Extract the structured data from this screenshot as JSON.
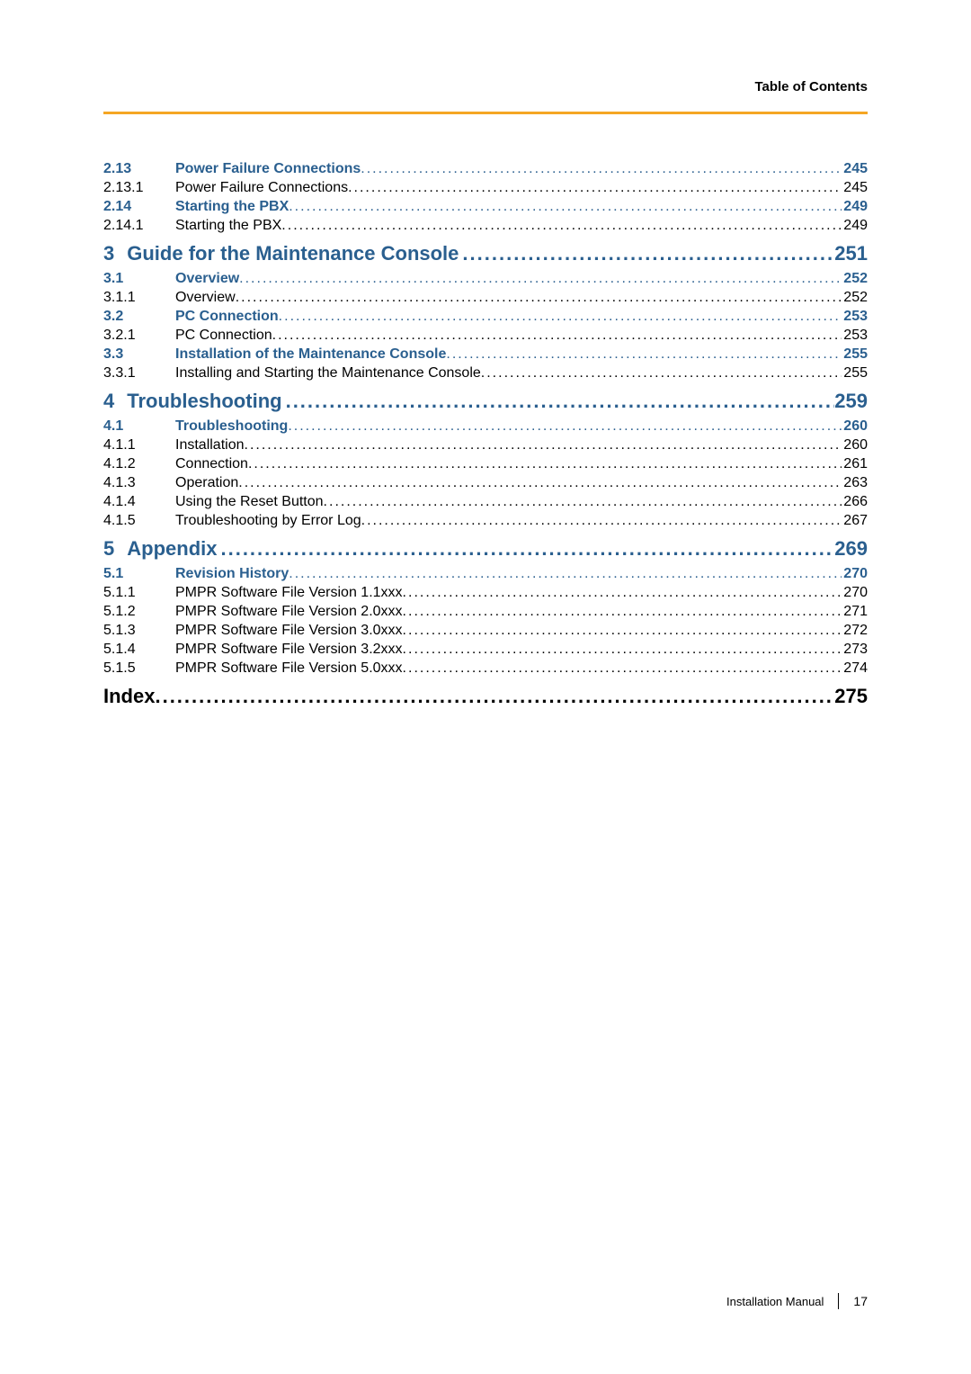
{
  "header": {
    "title": "Table of Contents"
  },
  "toc": [
    {
      "kind": "entry",
      "bold": true,
      "color": true,
      "num": "2.13",
      "title": "Power Failure Connections ",
      "page": "245"
    },
    {
      "kind": "entry",
      "bold": false,
      "color": false,
      "num": "2.13.1",
      "title": "Power Failure Connections ",
      "page": "245"
    },
    {
      "kind": "entry",
      "bold": true,
      "color": true,
      "num": "2.14",
      "title": "Starting the PBX ",
      "page": "249"
    },
    {
      "kind": "entry",
      "bold": false,
      "color": false,
      "num": "2.14.1",
      "title": "Starting the PBX ",
      "page": "249"
    },
    {
      "kind": "chapter",
      "num": "3",
      "title": "Guide for the Maintenance Console ",
      "page": "251"
    },
    {
      "kind": "entry",
      "bold": true,
      "color": true,
      "num": "3.1",
      "title": "Overview ",
      "page": "252"
    },
    {
      "kind": "entry",
      "bold": false,
      "color": false,
      "num": "3.1.1",
      "title": "Overview ",
      "page": "252"
    },
    {
      "kind": "entry",
      "bold": true,
      "color": true,
      "num": "3.2",
      "title": "PC Connection ",
      "page": "253"
    },
    {
      "kind": "entry",
      "bold": false,
      "color": false,
      "num": "3.2.1",
      "title": "PC Connection ",
      "page": "253"
    },
    {
      "kind": "entry",
      "bold": true,
      "color": true,
      "num": "3.3",
      "title": "Installation of the Maintenance Console ",
      "page": "255"
    },
    {
      "kind": "entry",
      "bold": false,
      "color": false,
      "num": "3.3.1",
      "title": "Installing and Starting the Maintenance Console ",
      "page": "255"
    },
    {
      "kind": "chapter",
      "num": "4",
      "title": "Troubleshooting ",
      "page": "259"
    },
    {
      "kind": "entry",
      "bold": true,
      "color": true,
      "num": "4.1",
      "title": "Troubleshooting ",
      "page": "260"
    },
    {
      "kind": "entry",
      "bold": false,
      "color": false,
      "num": "4.1.1",
      "title": "Installation ",
      "page": "260"
    },
    {
      "kind": "entry",
      "bold": false,
      "color": false,
      "num": "4.1.2",
      "title": "Connection ",
      "page": "261"
    },
    {
      "kind": "entry",
      "bold": false,
      "color": false,
      "num": "4.1.3",
      "title": "Operation ",
      "page": "263"
    },
    {
      "kind": "entry",
      "bold": false,
      "color": false,
      "num": "4.1.4",
      "title": "Using the Reset Button ",
      "page": "266"
    },
    {
      "kind": "entry",
      "bold": false,
      "color": false,
      "num": "4.1.5",
      "title": "Troubleshooting by Error Log ",
      "page": "267"
    },
    {
      "kind": "chapter",
      "num": "5",
      "title": "Appendix ",
      "page": "269"
    },
    {
      "kind": "entry",
      "bold": true,
      "color": true,
      "num": "5.1",
      "title": "Revision History ",
      "page": "270"
    },
    {
      "kind": "entry",
      "bold": false,
      "color": false,
      "num": "5.1.1",
      "title": "PMPR Software File Version 1.1xxx ",
      "page": "270"
    },
    {
      "kind": "entry",
      "bold": false,
      "color": false,
      "num": "5.1.2",
      "title": "PMPR Software File Version 2.0xxx ",
      "page": "271"
    },
    {
      "kind": "entry",
      "bold": false,
      "color": false,
      "num": "5.1.3",
      "title": "PMPR Software File Version 3.0xxx ",
      "page": "272"
    },
    {
      "kind": "entry",
      "bold": false,
      "color": false,
      "num": "5.1.4",
      "title": "PMPR Software File Version 3.2xxx ",
      "page": "273"
    },
    {
      "kind": "entry",
      "bold": false,
      "color": false,
      "num": "5.1.5",
      "title": "PMPR Software File Version 5.0xxx ",
      "page": "274"
    },
    {
      "kind": "index",
      "title": "Index",
      "page": "275"
    }
  ],
  "footer": {
    "label": "Installation Manual",
    "pagenum": "17"
  },
  "style": {
    "heading_color": "#2a5f8f",
    "accent_bar_color": "#f5a623",
    "body_font_size_pt": 12,
    "chapter_font_size_pt": 16
  }
}
